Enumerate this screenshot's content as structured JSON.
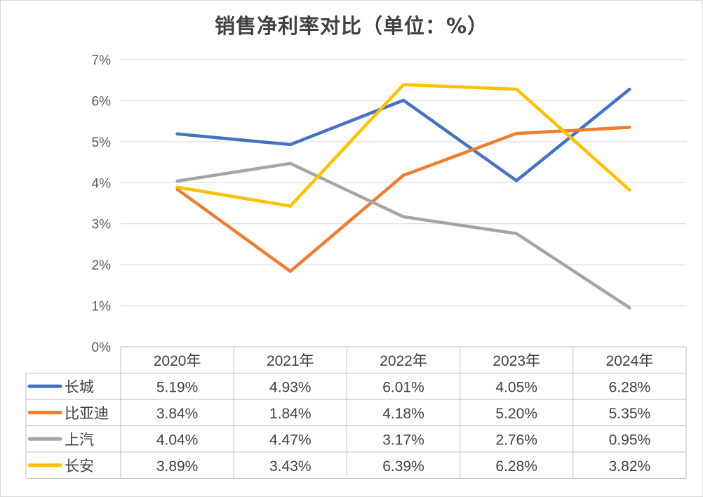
{
  "chart_data": {
    "type": "line",
    "title": "销售净利率对比（单位：%）",
    "categories": [
      "2020年",
      "2021年",
      "2022年",
      "2023年",
      "2024年"
    ],
    "ylim": [
      0,
      7
    ],
    "ytick_labels": [
      "0%",
      "1%",
      "2%",
      "3%",
      "4%",
      "5%",
      "6%",
      "7%"
    ],
    "grid": true,
    "legend": "data-table",
    "series": [
      {
        "name": "长城",
        "color": "#4472c4",
        "values": [
          5.19,
          4.93,
          6.01,
          4.05,
          6.28
        ],
        "labels": [
          "5.19%",
          "4.93%",
          "6.01%",
          "4.05%",
          "6.28%"
        ]
      },
      {
        "name": "比亚迪",
        "color": "#ed7d31",
        "values": [
          3.84,
          1.84,
          4.18,
          5.2,
          5.35
        ],
        "labels": [
          "3.84%",
          "1.84%",
          "4.18%",
          "5.20%",
          "5.35%"
        ]
      },
      {
        "name": "上汽",
        "color": "#a5a5a5",
        "values": [
          4.04,
          4.47,
          3.17,
          2.76,
          0.95
        ],
        "labels": [
          "4.04%",
          "4.47%",
          "3.17%",
          "2.76%",
          "0.95%"
        ]
      },
      {
        "name": "长安",
        "color": "#ffc000",
        "values": [
          3.89,
          3.43,
          6.39,
          6.28,
          3.82
        ],
        "labels": [
          "3.89%",
          "3.43%",
          "6.39%",
          "6.28%",
          "3.82%"
        ]
      }
    ]
  }
}
